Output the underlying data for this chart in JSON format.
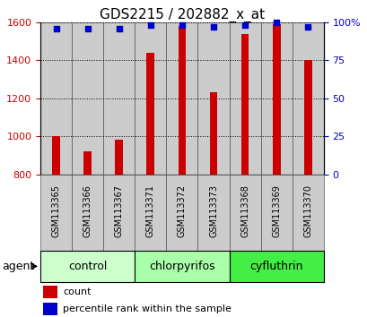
{
  "title": "GDS2215 / 202882_x_at",
  "samples": [
    "GSM113365",
    "GSM113366",
    "GSM113367",
    "GSM113371",
    "GSM113372",
    "GSM113373",
    "GSM113368",
    "GSM113369",
    "GSM113370"
  ],
  "counts": [
    1000,
    920,
    980,
    1440,
    1580,
    1230,
    1540,
    1590,
    1400
  ],
  "percentiles": [
    96,
    96,
    96,
    98,
    98,
    97,
    98,
    100,
    97
  ],
  "groups": [
    {
      "label": "control",
      "start": 0,
      "end": 3,
      "color": "#ccffcc"
    },
    {
      "label": "chlorpyrifos",
      "start": 3,
      "end": 6,
      "color": "#aaffaa"
    },
    {
      "label": "cyfluthrin",
      "start": 6,
      "end": 9,
      "color": "#44ee44"
    }
  ],
  "bar_color": "#cc0000",
  "dot_color": "#0000cc",
  "left_ylim": [
    800,
    1600
  ],
  "right_ylim": [
    0,
    100
  ],
  "left_yticks": [
    800,
    1000,
    1200,
    1400,
    1600
  ],
  "right_yticks": [
    0,
    25,
    50,
    75,
    100
  ],
  "right_yticklabels": [
    "0",
    "25",
    "50",
    "75",
    "100%"
  ],
  "grid_color": "#888888",
  "ylabel_left_color": "#cc0000",
  "ylabel_right_color": "#0000cc",
  "agent_label": "agent",
  "legend_count_label": "count",
  "legend_percentile_label": "percentile rank within the sample",
  "sample_box_color": "#cccccc",
  "sample_box_border": "#555555",
  "title_fontsize": 11,
  "tick_fontsize": 8,
  "label_fontsize": 7,
  "group_fontsize": 9,
  "legend_fontsize": 8,
  "agent_fontsize": 9,
  "bar_width": 0.25
}
